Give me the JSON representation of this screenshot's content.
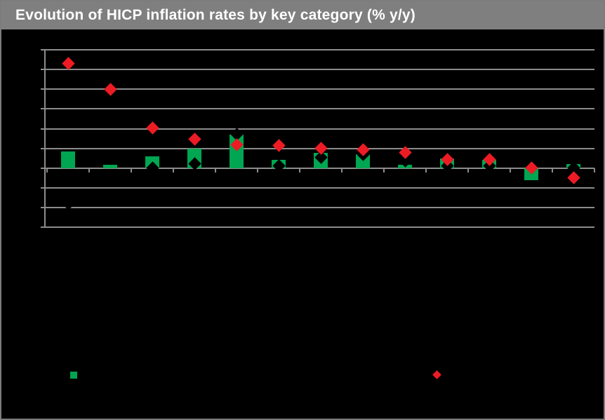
{
  "header": {
    "title": "Evolution of HICP inflation rates by key category (% y/y)"
  },
  "colors": {
    "title_bar_bg": "#7F7F7F",
    "title_text": "#FFFFFF",
    "canvas_bg": "#000000",
    "frame_border": "#7C7C7C",
    "gridline": "#8C8C8C",
    "bar_green": "#00A651",
    "diamond_red": "#ED1C24",
    "diamond_black": "#000000"
  },
  "legend": {
    "position": "bottom",
    "labels_visible": false,
    "markers": [
      {
        "name": "green-bar-series-marker",
        "shape": "square",
        "color": "#00A651"
      },
      {
        "name": "red-diamond-series-marker",
        "shape": "diamond",
        "color": "#ED1C24"
      }
    ]
  },
  "chart_data": {
    "type": "bar",
    "title": "Evolution of HICP inflation rates by key category (% y/y)",
    "xlabel": "",
    "ylabel": "",
    "axis_tick_labels_visible": false,
    "category_labels_visible": false,
    "num_categories": 13,
    "categories": [
      "",
      "",
      "",
      "",
      "",
      "",
      "",
      "",
      "",
      "",
      "",
      "",
      ""
    ],
    "series": [
      {
        "name": "green-bars",
        "type": "bar",
        "color": "#00A651",
        "values": [
          0.85,
          0.15,
          0.6,
          1.0,
          1.7,
          0.4,
          0.78,
          0.7,
          0.18,
          0.47,
          0.4,
          -0.62,
          0.2
        ]
      },
      {
        "name": "black-diamonds",
        "type": "scatter",
        "marker": "diamond",
        "color": "#000000",
        "values": [
          -1.8,
          null,
          0.0,
          0.23,
          1.72,
          0.12,
          0.55,
          0.7,
          0.35,
          0.1,
          0.1,
          null,
          0.0
        ]
      },
      {
        "name": "red-diamonds",
        "type": "scatter",
        "marker": "diamond",
        "color": "#ED1C24",
        "values": [
          5.3,
          4.0,
          2.02,
          1.45,
          1.17,
          1.16,
          1.02,
          0.95,
          0.8,
          0.45,
          0.45,
          0.0,
          -0.5
        ]
      }
    ],
    "ylim": [
      -3,
      6
    ],
    "gridline_step": 1,
    "grid": true,
    "zero_line_value": 0
  }
}
